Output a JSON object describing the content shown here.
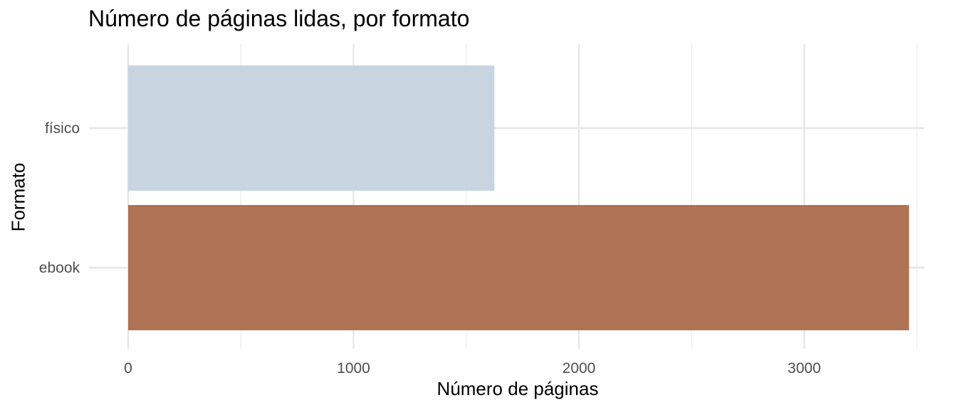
{
  "chart_data": {
    "type": "bar",
    "orientation": "horizontal",
    "title": "Número de páginas lidas, por formato",
    "xlabel": "Número de páginas",
    "ylabel": "Formato",
    "categories": [
      "físico",
      "ebook"
    ],
    "values": [
      1625,
      3465
    ],
    "bar_colors": [
      "#c8d4e0",
      "#b07254"
    ],
    "xlim": [
      0,
      3500
    ],
    "x_ticks": [
      0,
      1000,
      2000,
      3000
    ],
    "x_tick_labels": [
      "0",
      "1000",
      "2000",
      "3000"
    ],
    "grid": true,
    "legend": "none"
  }
}
